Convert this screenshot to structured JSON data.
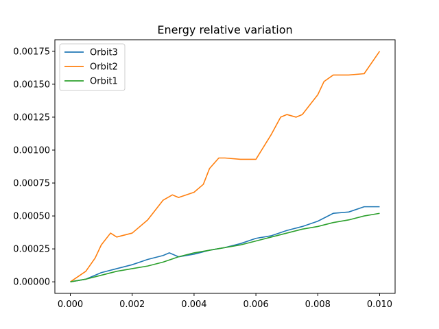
{
  "chart_data": {
    "type": "line",
    "title": "Energy relative variation",
    "xlabel": "",
    "ylabel": "",
    "xlim": [
      -0.0005,
      0.0105
    ],
    "ylim": [
      -8.75e-05,
      0.0018375
    ],
    "xticks": [
      0.0,
      0.002,
      0.004,
      0.006,
      0.008,
      0.01
    ],
    "xtick_labels": [
      "0.000",
      "0.002",
      "0.004",
      "0.006",
      "0.008",
      "0.010"
    ],
    "yticks": [
      0.0,
      0.00025,
      0.0005,
      0.00075,
      0.001,
      0.00125,
      0.0015,
      0.00175
    ],
    "ytick_labels": [
      "0.00000",
      "0.00025",
      "0.00050",
      "0.00075",
      "0.00100",
      "0.00125",
      "0.00150",
      "0.00175"
    ],
    "grid": false,
    "legend_position": "upper-left",
    "series": [
      {
        "name": "Orbit3",
        "color": "#1f77b4",
        "x": [
          0.0,
          0.0005,
          0.001,
          0.0015,
          0.002,
          0.0025,
          0.003,
          0.0032,
          0.0035,
          0.004,
          0.0045,
          0.005,
          0.0055,
          0.006,
          0.0065,
          0.007,
          0.0075,
          0.008,
          0.0085,
          0.009,
          0.0095,
          0.01
        ],
        "y": [
          0.0,
          2e-05,
          7e-05,
          0.0001,
          0.00013,
          0.00017,
          0.0002,
          0.00022,
          0.00019,
          0.00021,
          0.00024,
          0.00026,
          0.00029,
          0.00033,
          0.00035,
          0.00039,
          0.00042,
          0.00046,
          0.00052,
          0.00053,
          0.00057,
          0.00057
        ]
      },
      {
        "name": "Orbit2",
        "color": "#ff7f0e",
        "x": [
          0.0,
          0.0005,
          0.0008,
          0.001,
          0.0013,
          0.0015,
          0.002,
          0.0025,
          0.003,
          0.0033,
          0.0035,
          0.004,
          0.0043,
          0.0045,
          0.0048,
          0.005,
          0.0055,
          0.006,
          0.0065,
          0.0068,
          0.007,
          0.0073,
          0.0075,
          0.0078,
          0.008,
          0.0082,
          0.0085,
          0.009,
          0.0095,
          0.01
        ],
        "y": [
          0.0,
          8e-05,
          0.00018,
          0.00028,
          0.00037,
          0.00034,
          0.00037,
          0.00047,
          0.00062,
          0.00066,
          0.00064,
          0.00068,
          0.00074,
          0.00086,
          0.00094,
          0.00094,
          0.00093,
          0.00093,
          0.00112,
          0.00125,
          0.00127,
          0.00125,
          0.00127,
          0.00136,
          0.00142,
          0.00152,
          0.00157,
          0.00157,
          0.00158,
          0.00175
        ]
      },
      {
        "name": "Orbit1",
        "color": "#2ca02c",
        "x": [
          0.0,
          0.0005,
          0.001,
          0.0015,
          0.002,
          0.0025,
          0.003,
          0.0035,
          0.004,
          0.0045,
          0.005,
          0.0055,
          0.006,
          0.0065,
          0.007,
          0.0075,
          0.008,
          0.0085,
          0.009,
          0.0095,
          0.01
        ],
        "y": [
          0.0,
          2e-05,
          5e-05,
          8e-05,
          0.0001,
          0.00012,
          0.00015,
          0.00019,
          0.00022,
          0.00024,
          0.00026,
          0.00028,
          0.00031,
          0.00034,
          0.00037,
          0.0004,
          0.00042,
          0.00045,
          0.00047,
          0.0005,
          0.00052
        ]
      }
    ]
  }
}
